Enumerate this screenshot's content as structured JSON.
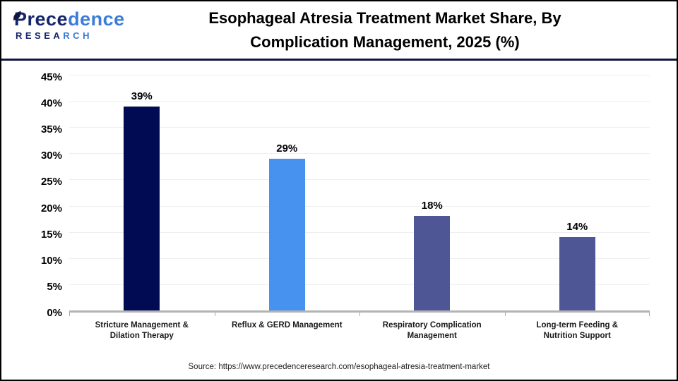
{
  "header": {
    "logo": {
      "line1_parts": [
        {
          "text": "Prece",
          "color": "#16246d"
        },
        {
          "text": "dence",
          "color": "#3b7cd9"
        }
      ],
      "line2_parts": [
        {
          "text": "RESEA",
          "color": "#16246d"
        },
        {
          "text": "RCH",
          "color": "#3b7cd9"
        }
      ],
      "leaf_icon_color": "#10163f"
    },
    "title_lines": [
      "Esophageal Atresia Treatment Market Share, By",
      "Complication Management, 2025 (%)"
    ]
  },
  "chart_data": {
    "type": "bar",
    "title": "Esophageal Atresia Treatment Market Share, By Complication Management, 2025 (%)",
    "categories": [
      "Stricture Management & Dilation Therapy",
      "Reflux & GERD Management",
      "Respiratory Complication Management",
      "Long-term Feeding & Nutrition Support"
    ],
    "category_lines": [
      [
        "Stricture Management &",
        "Dilation Therapy"
      ],
      [
        "Reflux & GERD Management"
      ],
      [
        "Respiratory Complication",
        "Management"
      ],
      [
        "Long-term Feeding &",
        "Nutrition Support"
      ]
    ],
    "values": [
      39,
      29,
      18,
      14
    ],
    "value_labels": [
      "39%",
      "29%",
      "18%",
      "14%"
    ],
    "bar_colors": [
      "#000b54",
      "#4791ef",
      "#4e5695",
      "#4e5695"
    ],
    "xlabel": "",
    "ylabel": "",
    "ylim": [
      0,
      45
    ],
    "ytick_step": 5,
    "ytick_suffix": "%",
    "grid": true,
    "legend": "none",
    "grid_color": "#eeeeee",
    "axis_color": "#b3b3b3"
  },
  "footer": {
    "source": "Source: https://www.precedenceresearch.com/esophageal-atresia-treatment-market"
  }
}
